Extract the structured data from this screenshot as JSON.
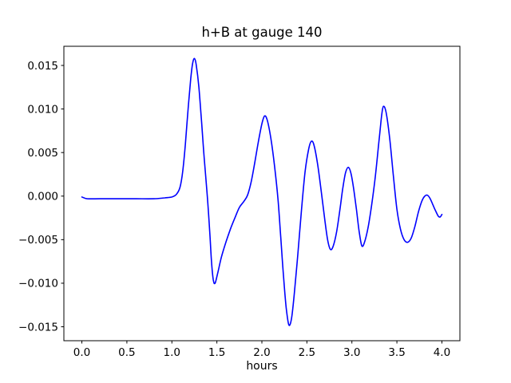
{
  "colors": {
    "background": "#ffffff",
    "axes": "#000000",
    "text": "#000000",
    "line": "#0000ff"
  },
  "chart_data": {
    "type": "line",
    "title": "h+B at gauge 140",
    "xlabel": "hours",
    "ylabel": "",
    "grid": false,
    "legend": null,
    "line_color": "#0000ff",
    "xlim": [
      -0.2,
      4.2
    ],
    "ylim": [
      -0.0166,
      0.0172
    ],
    "x_ticks": {
      "values": [
        0.0,
        0.5,
        1.0,
        1.5,
        2.0,
        2.5,
        3.0,
        3.5,
        4.0
      ],
      "labels": [
        "0.0",
        "0.5",
        "1.0",
        "1.5",
        "2.0",
        "2.5",
        "3.0",
        "3.5",
        "4.0"
      ]
    },
    "y_ticks": {
      "values": [
        0.015,
        0.01,
        0.005,
        0.0,
        -0.005,
        -0.01,
        -0.015
      ],
      "labels": [
        "0.015",
        "0.010",
        "0.005",
        "0.000",
        "−0.005",
        "−0.010",
        "−0.015"
      ]
    },
    "series": [
      {
        "name": "h+B",
        "points": [
          [
            0.0,
            -0.0001
          ],
          [
            0.06,
            -0.0003
          ],
          [
            0.2,
            -0.0003
          ],
          [
            0.4,
            -0.0003
          ],
          [
            0.6,
            -0.0003
          ],
          [
            0.8,
            -0.0003
          ],
          [
            0.92,
            -0.0002
          ],
          [
            1.0,
            -0.0001
          ],
          [
            1.05,
            0.0002
          ],
          [
            1.09,
            0.001
          ],
          [
            1.12,
            0.0028
          ],
          [
            1.15,
            0.006
          ],
          [
            1.18,
            0.01
          ],
          [
            1.21,
            0.0135
          ],
          [
            1.23,
            0.0152
          ],
          [
            1.25,
            0.0158
          ],
          [
            1.27,
            0.0151
          ],
          [
            1.3,
            0.0125
          ],
          [
            1.33,
            0.0085
          ],
          [
            1.36,
            0.0042
          ],
          [
            1.39,
            0.0005
          ],
          [
            1.42,
            -0.004
          ],
          [
            1.44,
            -0.0075
          ],
          [
            1.46,
            -0.0096
          ],
          [
            1.48,
            -0.01
          ],
          [
            1.51,
            -0.0088
          ],
          [
            1.55,
            -0.007
          ],
          [
            1.6,
            -0.0053
          ],
          [
            1.65,
            -0.0038
          ],
          [
            1.7,
            -0.0025
          ],
          [
            1.75,
            -0.0013
          ],
          [
            1.8,
            -0.0006
          ],
          [
            1.84,
            0.0001
          ],
          [
            1.88,
            0.0016
          ],
          [
            1.92,
            0.0038
          ],
          [
            1.96,
            0.0062
          ],
          [
            2.0,
            0.0083
          ],
          [
            2.03,
            0.0092
          ],
          [
            2.06,
            0.0087
          ],
          [
            2.1,
            0.0066
          ],
          [
            2.14,
            0.0035
          ],
          [
            2.18,
            -0.0005
          ],
          [
            2.21,
            -0.0048
          ],
          [
            2.24,
            -0.0092
          ],
          [
            2.27,
            -0.0128
          ],
          [
            2.3,
            -0.0148
          ],
          [
            2.33,
            -0.014
          ],
          [
            2.36,
            -0.0112
          ],
          [
            2.4,
            -0.0066
          ],
          [
            2.44,
            -0.0016
          ],
          [
            2.48,
            0.0028
          ],
          [
            2.52,
            0.0054
          ],
          [
            2.55,
            0.0063
          ],
          [
            2.58,
            0.0058
          ],
          [
            2.62,
            0.0036
          ],
          [
            2.66,
            0.0005
          ],
          [
            2.7,
            -0.0028
          ],
          [
            2.73,
            -0.005
          ],
          [
            2.76,
            -0.0061
          ],
          [
            2.79,
            -0.0058
          ],
          [
            2.83,
            -0.0041
          ],
          [
            2.87,
            -0.0013
          ],
          [
            2.9,
            0.001
          ],
          [
            2.93,
            0.0027
          ],
          [
            2.96,
            0.0033
          ],
          [
            2.99,
            0.0026
          ],
          [
            3.02,
            0.0008
          ],
          [
            3.05,
            -0.0015
          ],
          [
            3.08,
            -0.004
          ],
          [
            3.11,
            -0.0057
          ],
          [
            3.14,
            -0.0053
          ],
          [
            3.18,
            -0.0036
          ],
          [
            3.22,
            -0.001
          ],
          [
            3.26,
            0.0022
          ],
          [
            3.3,
            0.0062
          ],
          [
            3.33,
            0.0092
          ],
          [
            3.35,
            0.0103
          ],
          [
            3.38,
            0.0096
          ],
          [
            3.42,
            0.0066
          ],
          [
            3.46,
            0.0024
          ],
          [
            3.5,
            -0.0015
          ],
          [
            3.54,
            -0.0038
          ],
          [
            3.58,
            -0.005
          ],
          [
            3.62,
            -0.0053
          ],
          [
            3.66,
            -0.0048
          ],
          [
            3.7,
            -0.0035
          ],
          [
            3.74,
            -0.0018
          ],
          [
            3.78,
            -0.0005
          ],
          [
            3.81,
            0.0
          ],
          [
            3.84,
            0.0001
          ],
          [
            3.87,
            -0.0003
          ],
          [
            3.9,
            -0.001
          ],
          [
            3.93,
            -0.0017
          ],
          [
            3.96,
            -0.0023
          ],
          [
            3.98,
            -0.0024
          ],
          [
            4.0,
            -0.0021
          ]
        ]
      }
    ]
  }
}
